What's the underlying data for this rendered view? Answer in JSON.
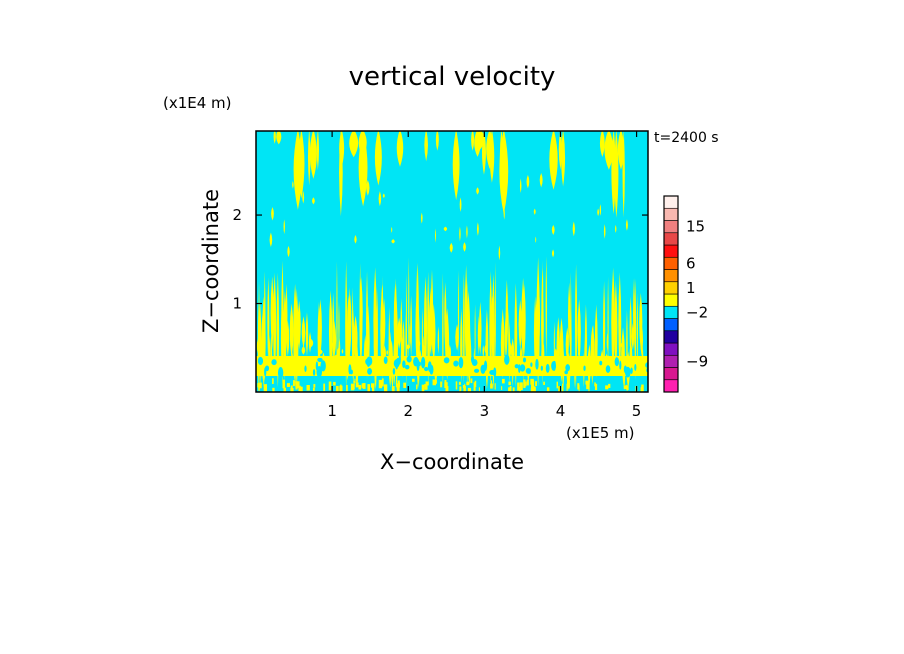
{
  "chart_data": {
    "type": "heatmap",
    "title": "vertical velocity",
    "xlabel": "X−coordinate",
    "ylabel": "Z−coordinate",
    "x_unit": "(x1E5 m)",
    "y_unit": "(x1E4 m)",
    "time_label": "t=2400 s",
    "xlim": [
      0,
      5.15
    ],
    "ylim": [
      0,
      2.95
    ],
    "x_ticks": [
      {
        "value": 1,
        "label": "1"
      },
      {
        "value": 2,
        "label": "2"
      },
      {
        "value": 3,
        "label": "3"
      },
      {
        "value": 4,
        "label": "4"
      },
      {
        "value": 5,
        "label": "5"
      }
    ],
    "y_ticks": [
      {
        "value": 1,
        "label": "1"
      },
      {
        "value": 2,
        "label": "2"
      }
    ],
    "background_color": "#00e5f5",
    "field_color": "#ffff00",
    "colorbar": {
      "colors": [
        "#ff20b0",
        "#d81890",
        "#b020b0",
        "#8010c0",
        "#2000a0",
        "#0060ff",
        "#00e5f5",
        "#ffff00",
        "#ffd000",
        "#ff9000",
        "#ff6000",
        "#ff1010",
        "#e84848",
        "#f08080",
        "#f8b8b0",
        "#fff0ec"
      ],
      "tick_labels": [
        {
          "label": "15",
          "index": 13.5
        },
        {
          "label": "6",
          "index": 10.5
        },
        {
          "label": "1",
          "index": 8.5
        },
        {
          "label": "−2",
          "index": 6.5
        },
        {
          "label": "−9",
          "index": 2.5
        }
      ]
    }
  }
}
